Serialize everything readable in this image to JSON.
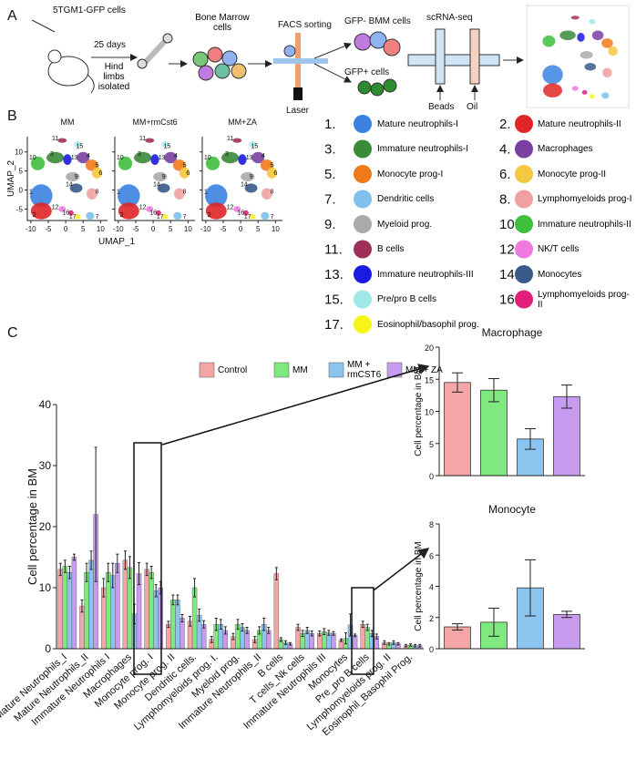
{
  "panel_a": {
    "label": "A",
    "cells": "5TGM1-GFP cells",
    "days": "25 days",
    "hind": "Hind limbs isolated",
    "bone_marrow": "Bone Marrow cells",
    "facs": "FACS sorting",
    "laser": "Laser",
    "gfp_neg": "GFP- BMM cells",
    "gfp_pos": "GFP+ cells",
    "scrna": "scRNA-seq",
    "beads": "Beads",
    "oil": "Oil"
  },
  "panel_b": {
    "label": "B",
    "titles": [
      "MM",
      "MM+rmCst6",
      "MM+ZA"
    ],
    "xlabel": "UMAP_1",
    "ylabel": "UMAP_2",
    "xlim": [
      -11,
      12
    ],
    "ylim": [
      -8,
      14
    ],
    "xticks": [
      -10,
      -5,
      0,
      5,
      10
    ],
    "yticks": [
      -5,
      0,
      5,
      10
    ],
    "clusters": [
      {
        "number": "1.",
        "id": "1",
        "label": "Mature neutrophils-I",
        "color": "#3b82e0"
      },
      {
        "number": "2.",
        "id": "2",
        "label": "Mature neutrophils-II",
        "color": "#e02626"
      },
      {
        "number": "3.",
        "id": "3",
        "label": "Immature neutrophils-I",
        "color": "#3a8a3a"
      },
      {
        "number": "4.",
        "id": "4",
        "label": "Macrophages",
        "color": "#7a3fa0"
      },
      {
        "number": "5.",
        "id": "5",
        "label": "Monocyte prog-I",
        "color": "#f07a1a"
      },
      {
        "number": "6.",
        "id": "6",
        "label": "Monocyte prog-II",
        "color": "#f5c842"
      },
      {
        "number": "7.",
        "id": "7",
        "label": "Dendritic cells",
        "color": "#7fc0ec"
      },
      {
        "number": "8.",
        "id": "8",
        "label": "Lymphomyeloids prog-I",
        "color": "#f0a0a0"
      },
      {
        "number": "9.",
        "id": "9",
        "label": "Myeloid prog.",
        "color": "#aaaaaa"
      },
      {
        "number": "10.",
        "id": "10",
        "label": "Immature neutrophils-II",
        "color": "#3ec03e"
      },
      {
        "number": "11.",
        "id": "11",
        "label": "B cells",
        "color": "#a0305a"
      },
      {
        "number": "12.",
        "id": "12",
        "label": "NK/T cells",
        "color": "#f07ae0"
      },
      {
        "number": "13.",
        "id": "13",
        "label": "Immature neutrophils-III",
        "color": "#1a1ae0"
      },
      {
        "number": "14.",
        "id": "14",
        "label": "Monocytes",
        "color": "#3a5a8a"
      },
      {
        "number": "15.",
        "id": "15",
        "label": "Pre/pro B cells",
        "color": "#a0e8e8"
      },
      {
        "number": "16.",
        "id": "16",
        "label": "Lymphomyeloids prog-II",
        "color": "#e0207a"
      },
      {
        "number": "17.",
        "id": "17",
        "label": "Eosinophil/basophil prog.",
        "color": "#f5f51a"
      }
    ]
  },
  "panel_c": {
    "label": "C"
  },
  "chart_data": [
    {
      "type": "bar",
      "ylabel": "Cell percentage in BM",
      "ylim": [
        0,
        40
      ],
      "yticks": [
        0,
        10,
        20,
        30,
        40
      ],
      "categories": [
        "Mature Neutrophils_I",
        "Mature Neutrophils_II",
        "Immature Neutrophils I",
        "Macrophages",
        "Monocyte prog. I",
        "Monocyte prog. II",
        "Dendritic cells.",
        "Lymphomyeloids prog. I.",
        "Myeloid prog.",
        "Immature Neutrophils_II",
        "B cells",
        "T cells_Nk cells",
        "Immature Neutrophils III",
        "Monocytes",
        "Pre_pro B cells",
        "Lymphomyeloids prog. II",
        "Eosinophil_Basophil Prog."
      ],
      "series": [
        {
          "name": "Control",
          "color": "#f4a6a6",
          "values": [
            13,
            7,
            10,
            14.5,
            13,
            4,
            4.5,
            1.5,
            2,
            1.5,
            12.3,
            3.5,
            2.5,
            1.4,
            4,
            1,
            0.5
          ],
          "errors": [
            1,
            1,
            1.5,
            1.5,
            1,
            0.5,
            0.8,
            0.5,
            0.5,
            0.5,
            1,
            0.5,
            0.4,
            0.2,
            0.5,
            0.3,
            0.2
          ]
        },
        {
          "name": "MM",
          "color": "#7fe87f",
          "values": [
            13.5,
            12.5,
            12.5,
            13.3,
            12.5,
            8,
            10,
            4,
            4,
            3,
            1.5,
            2.5,
            2.8,
            1.7,
            3.5,
            0.8,
            0.6
          ],
          "errors": [
            1,
            1.5,
            1.5,
            1.8,
            1,
            0.8,
            1.5,
            1,
            0.8,
            0.6,
            0.3,
            0.5,
            0.5,
            0.9,
            0.5,
            0.2,
            0.2
          ]
        },
        {
          "name": "MM + rmCST6",
          "color": "#8cc4f0",
          "values": [
            12.5,
            14.5,
            12,
            5.7,
            9.5,
            8,
            5.5,
            4,
            3.5,
            4,
            1,
            3,
            2.6,
            3.9,
            2.5,
            1,
            0.5
          ],
          "errors": [
            1,
            1.5,
            2,
            1.6,
            1,
            0.8,
            1,
            0.8,
            0.6,
            1,
            0.3,
            0.5,
            0.4,
            1.8,
            0.5,
            0.3,
            0.2
          ]
        },
        {
          "name": "MM + ZA",
          "color": "#c79cf0",
          "values": [
            15,
            22,
            14,
            12.3,
            10,
            5,
            4,
            3,
            3,
            3,
            0.8,
            2.5,
            2.5,
            2.2,
            2,
            0.8,
            0.5
          ],
          "errors": [
            0.5,
            11,
            1.5,
            1.8,
            1,
            0.6,
            0.6,
            0.6,
            0.5,
            0.5,
            0.2,
            0.4,
            0.3,
            0.2,
            0.4,
            0.2,
            0.2
          ]
        }
      ]
    },
    {
      "type": "bar",
      "title": "Macrophage",
      "ylabel": "Cell percentage in BM",
      "ylim": [
        0,
        20
      ],
      "yticks": [
        0,
        5,
        10,
        15,
        20
      ],
      "values": [
        14.5,
        13.3,
        5.7,
        12.3
      ],
      "errors": [
        1.5,
        1.8,
        1.6,
        1.8
      ],
      "colors": [
        "#f4a6a6",
        "#7fe87f",
        "#8cc4f0",
        "#c79cf0"
      ]
    },
    {
      "type": "bar",
      "title": "Monocyte",
      "ylabel": "Cell percentage in BM",
      "ylim": [
        0,
        8
      ],
      "yticks": [
        0,
        2,
        4,
        6,
        8
      ],
      "values": [
        1.4,
        1.7,
        3.9,
        2.2
      ],
      "errors": [
        0.2,
        0.9,
        1.8,
        0.2
      ],
      "colors": [
        "#f4a6a6",
        "#7fe87f",
        "#8cc4f0",
        "#c79cf0"
      ]
    }
  ]
}
